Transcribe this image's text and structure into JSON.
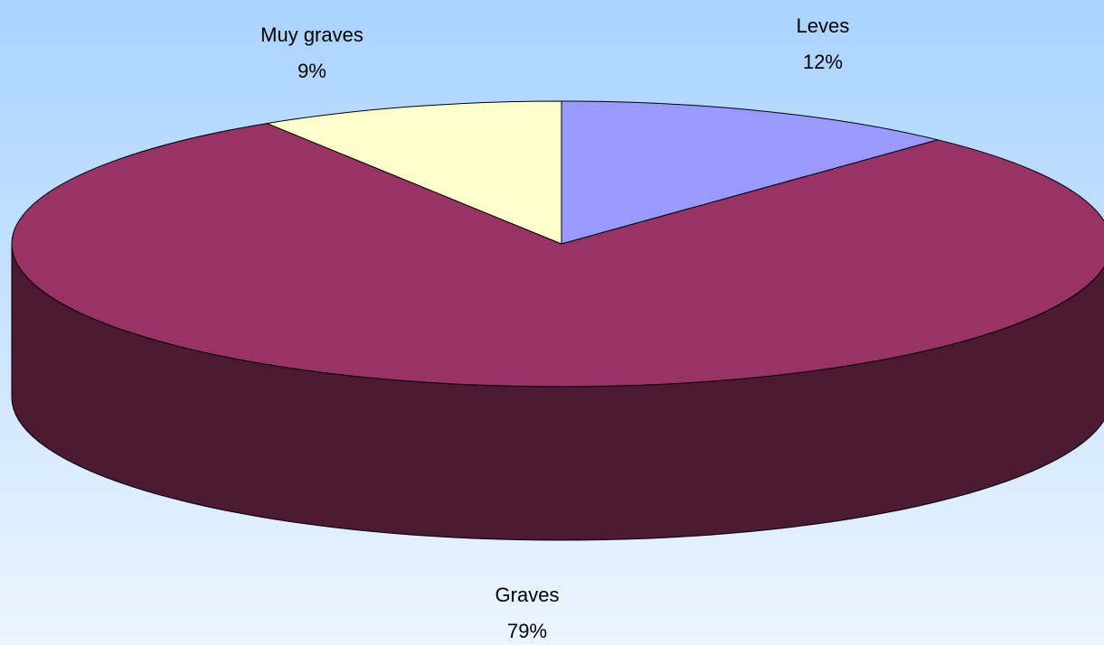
{
  "chart_data": {
    "type": "pie",
    "categories": [
      "Leves",
      "Graves",
      "Muy graves"
    ],
    "values": [
      12,
      79,
      9
    ],
    "value_labels": [
      "12%",
      "79%",
      "9%"
    ],
    "colors": [
      "#9999ff",
      "#993366",
      "#ffffcc"
    ]
  }
}
